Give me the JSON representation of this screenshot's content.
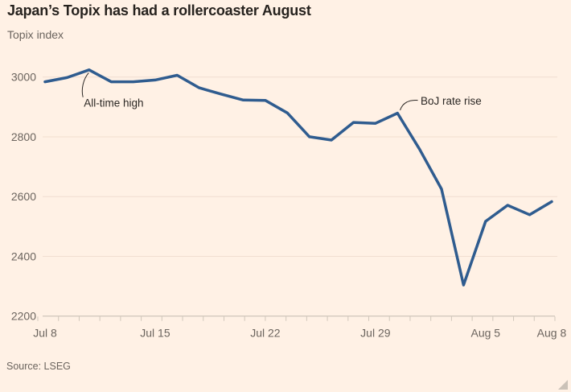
{
  "header": {
    "title": "Japan’s Topix has had a rollercoaster August",
    "subtitle": "Topix index"
  },
  "chart_data": {
    "type": "line",
    "title": "Japan’s Topix has had a rollercoaster August",
    "ylabel": "Topix index",
    "x": [
      "Jul 8",
      "Jul 9",
      "Jul 10",
      "Jul 11",
      "Jul 12",
      "Jul 15",
      "Jul 16",
      "Jul 17",
      "Jul 18",
      "Jul 19",
      "Jul 22",
      "Jul 23",
      "Jul 24",
      "Jul 25",
      "Jul 26",
      "Jul 29",
      "Jul 30",
      "Jul 31",
      "Aug 1",
      "Aug 2",
      "Aug 5",
      "Aug 6",
      "Aug 7",
      "Aug 8"
    ],
    "values": [
      2984,
      2998,
      3024,
      2984,
      2984,
      2990,
      3006,
      2964,
      2943,
      2923,
      2922,
      2880,
      2800,
      2789,
      2848,
      2845,
      2879,
      2759,
      2625,
      2304,
      2517,
      2571,
      2539,
      2583
    ],
    "ylim": [
      2200,
      3060
    ],
    "yticks": [
      2200,
      2400,
      2600,
      2800,
      3000
    ],
    "xticks": [
      {
        "label": "Jul 8",
        "index": 0
      },
      {
        "label": "Jul 15",
        "index": 5
      },
      {
        "label": "Jul 22",
        "index": 10
      },
      {
        "label": "Jul 29",
        "index": 15
      },
      {
        "label": "Aug 5",
        "index": 20
      },
      {
        "label": "Aug 8",
        "index": 23
      }
    ],
    "grid": true,
    "legend": "none",
    "annotations": [
      {
        "id": "all-time-high",
        "text": "All-time high",
        "x": "Jul 10",
        "value": 3024
      },
      {
        "id": "boj-rate-rise",
        "text": "BoJ rate rise",
        "x": "Jul 30",
        "value": 2879
      }
    ]
  },
  "footer": {
    "source": "Source: LSEG"
  },
  "colors": {
    "background": "#fff1e5",
    "line": "#2f5c8f",
    "grid": "#f0ded0",
    "axis": "#c3bab0",
    "tick": "#cfc6ba",
    "text_dark": "#2b2724",
    "text_muted": "#6b645e"
  }
}
